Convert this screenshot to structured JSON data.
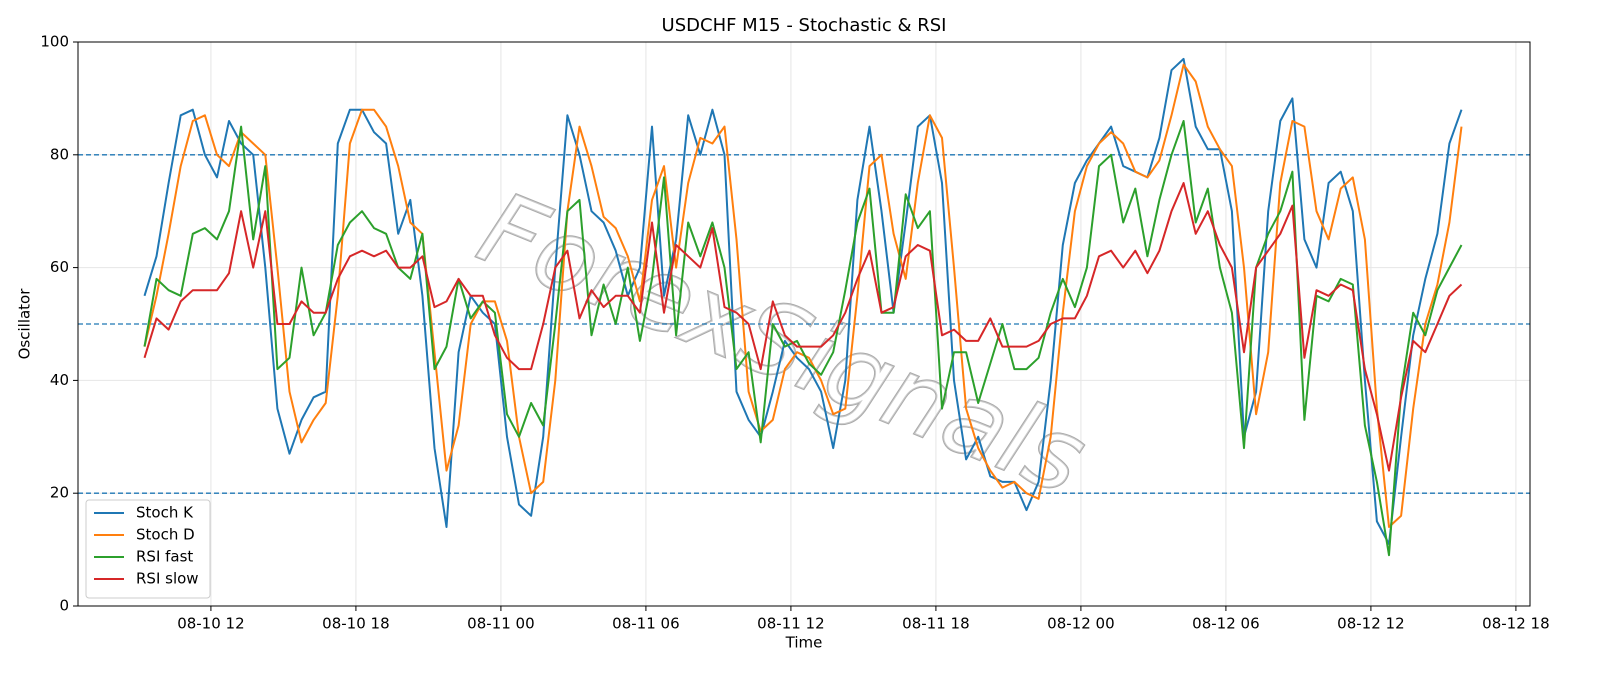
{
  "chart_data": {
    "type": "line",
    "title": "USDCHF M15 - Stochastic & RSI",
    "xlabel": "Time",
    "ylabel": "Oscillator",
    "watermark": "ForexSignals",
    "x": [
      "08-10 09:15",
      "08-10 09:45",
      "08-10 10:15",
      "08-10 10:45",
      "08-10 11:15",
      "08-10 11:45",
      "08-10 12:15",
      "08-10 12:45",
      "08-10 13:15",
      "08-10 13:45",
      "08-10 14:15",
      "08-10 14:45",
      "08-10 15:15",
      "08-10 15:45",
      "08-10 16:15",
      "08-10 16:45",
      "08-10 17:15",
      "08-10 17:45",
      "08-10 18:15",
      "08-10 18:45",
      "08-10 19:15",
      "08-10 19:45",
      "08-10 20:15",
      "08-10 20:45",
      "08-10 21:15",
      "08-10 21:45",
      "08-10 22:15",
      "08-10 22:45",
      "08-10 23:15",
      "08-10 23:45",
      "08-11 00:15",
      "08-11 00:45",
      "08-11 01:15",
      "08-11 01:45",
      "08-11 02:15",
      "08-11 02:45",
      "08-11 03:15",
      "08-11 03:45",
      "08-11 04:15",
      "08-11 04:45",
      "08-11 05:15",
      "08-11 05:45",
      "08-11 06:15",
      "08-11 06:45",
      "08-11 07:15",
      "08-11 07:45",
      "08-11 08:15",
      "08-11 08:45",
      "08-11 09:15",
      "08-11 09:45",
      "08-11 10:15",
      "08-11 10:45",
      "08-11 11:15",
      "08-11 11:45",
      "08-11 12:15",
      "08-11 12:45",
      "08-11 13:15",
      "08-11 13:45",
      "08-11 14:15",
      "08-11 14:45",
      "08-11 15:15",
      "08-11 15:45",
      "08-11 16:15",
      "08-11 16:45",
      "08-11 17:15",
      "08-11 17:45",
      "08-11 18:15",
      "08-11 18:45",
      "08-11 19:15",
      "08-11 19:45",
      "08-11 20:15",
      "08-11 20:45",
      "08-11 21:15",
      "08-11 21:45",
      "08-11 22:15",
      "08-11 22:45",
      "08-11 23:15",
      "08-11 23:45",
      "08-12 00:15",
      "08-12 00:45",
      "08-12 01:15",
      "08-12 01:45",
      "08-12 02:15",
      "08-12 02:45",
      "08-12 03:15",
      "08-12 03:45",
      "08-12 04:15",
      "08-12 04:45",
      "08-12 05:15",
      "08-12 05:45",
      "08-12 06:15",
      "08-12 06:45",
      "08-12 07:15",
      "08-12 07:45",
      "08-12 08:15",
      "08-12 08:45",
      "08-12 09:15",
      "08-12 09:45",
      "08-12 10:15",
      "08-12 10:45",
      "08-12 11:15",
      "08-12 11:45",
      "08-12 12:15",
      "08-12 12:45",
      "08-12 13:15",
      "08-12 13:45",
      "08-12 14:15",
      "08-12 14:45",
      "08-12 15:15",
      "08-12 15:45"
    ],
    "series": [
      {
        "name": "Stoch K",
        "color": "#1f77b4",
        "values": [
          55,
          62,
          75,
          87,
          88,
          80,
          76,
          86,
          82,
          80,
          60,
          35,
          27,
          33,
          37,
          38,
          82,
          88,
          88,
          84,
          82,
          66,
          72,
          55,
          28,
          14,
          45,
          55,
          52,
          50,
          30,
          18,
          16,
          30,
          60,
          87,
          80,
          70,
          68,
          63,
          55,
          60,
          85,
          55,
          65,
          87,
          80,
          88,
          80,
          38,
          33,
          30,
          38,
          47,
          44,
          42,
          38,
          28,
          40,
          72,
          85,
          70,
          52,
          68,
          85,
          87,
          75,
          40,
          26,
          30,
          23,
          22,
          22,
          17,
          22,
          40,
          64,
          75,
          79,
          82,
          85,
          78,
          77,
          76,
          83,
          95,
          97,
          85,
          81,
          81,
          70,
          30,
          38,
          70,
          86,
          90,
          65,
          60,
          75,
          77,
          70,
          40,
          15,
          11,
          30,
          48,
          58,
          66,
          82,
          88
        ]
      },
      {
        "name": "Stoch D",
        "color": "#ff7f0e",
        "values": [
          46,
          55,
          66,
          78,
          86,
          87,
          80,
          78,
          84,
          82,
          80,
          60,
          38,
          29,
          33,
          36,
          55,
          82,
          88,
          88,
          85,
          78,
          68,
          66,
          45,
          24,
          32,
          50,
          54,
          54,
          47,
          30,
          20,
          22,
          40,
          70,
          85,
          78,
          69,
          67,
          62,
          54,
          72,
          78,
          60,
          75,
          83,
          82,
          85,
          65,
          38,
          31,
          33,
          42,
          45,
          44,
          40,
          34,
          35,
          55,
          78,
          80,
          66,
          58,
          75,
          87,
          83,
          60,
          35,
          28,
          24,
          21,
          22,
          20,
          19,
          30,
          52,
          70,
          78,
          82,
          84,
          82,
          77,
          76,
          79,
          87,
          96,
          93,
          85,
          81,
          78,
          60,
          34,
          45,
          75,
          86,
          85,
          70,
          65,
          74,
          76,
          65,
          35,
          14,
          16,
          35,
          50,
          57,
          68,
          85
        ]
      },
      {
        "name": "RSI fast",
        "color": "#2ca02c",
        "values": [
          46,
          58,
          56,
          55,
          66,
          67,
          65,
          70,
          85,
          65,
          78,
          42,
          44,
          60,
          48,
          52,
          64,
          68,
          70,
          67,
          66,
          60,
          58,
          66,
          42,
          46,
          58,
          51,
          54,
          52,
          34,
          30,
          36,
          32,
          50,
          70,
          72,
          48,
          57,
          50,
          60,
          47,
          58,
          76,
          48,
          68,
          62,
          68,
          60,
          42,
          45,
          29,
          50,
          46,
          47,
          43,
          41,
          45,
          56,
          68,
          74,
          52,
          52,
          73,
          67,
          70,
          35,
          45,
          45,
          36,
          43,
          50,
          42,
          42,
          44,
          52,
          58,
          53,
          60,
          78,
          80,
          68,
          74,
          62,
          72,
          80,
          86,
          68,
          74,
          60,
          52,
          28,
          60,
          66,
          70,
          77,
          33,
          55,
          54,
          58,
          57,
          32,
          22,
          9,
          38,
          52,
          48,
          56,
          60,
          64
        ]
      },
      {
        "name": "RSI slow",
        "color": "#d62728",
        "values": [
          44,
          51,
          49,
          54,
          56,
          56,
          56,
          59,
          70,
          60,
          70,
          50,
          50,
          54,
          52,
          52,
          58,
          62,
          63,
          62,
          63,
          60,
          60,
          62,
          53,
          54,
          58,
          55,
          55,
          48,
          44,
          42,
          42,
          50,
          60,
          63,
          51,
          56,
          53,
          55,
          55,
          52,
          68,
          52,
          64,
          62,
          60,
          67,
          53,
          52,
          50,
          42,
          54,
          48,
          46,
          46,
          46,
          48,
          52,
          58,
          63,
          52,
          53,
          62,
          64,
          63,
          48,
          49,
          47,
          47,
          51,
          46,
          46,
          46,
          47,
          50,
          51,
          51,
          55,
          62,
          63,
          60,
          63,
          59,
          63,
          70,
          75,
          66,
          70,
          64,
          60,
          45,
          60,
          63,
          66,
          71,
          44,
          56,
          55,
          57,
          56,
          42,
          34,
          24,
          37,
          47,
          45,
          50,
          55,
          57
        ]
      }
    ],
    "reference_lines": [
      80,
      50,
      20
    ],
    "reference_color": "#1f77b4",
    "xlim": [
      "08-10 06:30",
      "08-12 18:35"
    ],
    "xticks": [
      {
        "value": "08-10 12:00",
        "label": "08-10 12"
      },
      {
        "value": "08-10 18:00",
        "label": "08-10 18"
      },
      {
        "value": "08-11 00:00",
        "label": "08-11 00"
      },
      {
        "value": "08-11 06:00",
        "label": "08-11 06"
      },
      {
        "value": "08-11 12:00",
        "label": "08-11 12"
      },
      {
        "value": "08-11 18:00",
        "label": "08-11 18"
      },
      {
        "value": "08-12 00:00",
        "label": "08-12 00"
      },
      {
        "value": "08-12 06:00",
        "label": "08-12 06"
      },
      {
        "value": "08-12 12:00",
        "label": "08-12 12"
      },
      {
        "value": "08-12 18:00",
        "label": "08-12 18"
      }
    ],
    "ylim": [
      0,
      100
    ],
    "yticks": [
      0,
      20,
      40,
      60,
      80,
      100
    ],
    "grid": true,
    "legend": "lower left"
  }
}
